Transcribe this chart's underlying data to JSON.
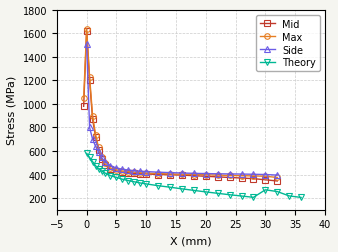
{
  "title": "",
  "xlabel": "X (mm)",
  "ylabel": "Stress (MPa)",
  "xlim": [
    -5,
    40
  ],
  "ylim": [
    100,
    1800
  ],
  "xticks": [
    -5,
    0,
    5,
    10,
    15,
    20,
    25,
    30,
    35,
    40
  ],
  "yticks": [
    200,
    400,
    600,
    800,
    1000,
    1200,
    1400,
    1600,
    1800
  ],
  "series": {
    "Mid": {
      "color": "#c0392b",
      "marker": "s",
      "markersize": 4,
      "linewidth": 1.0,
      "x": [
        -0.5,
        0.0,
        0.5,
        1.0,
        1.5,
        2.0,
        2.5,
        3.0,
        4.0,
        5.0,
        6.0,
        7.0,
        8.0,
        9.0,
        10.0,
        12.0,
        14.0,
        16.0,
        18.0,
        20.0,
        22.0,
        24.0,
        26.0,
        28.0,
        30.0,
        32.0
      ],
      "y": [
        980,
        1620,
        1200,
        870,
        720,
        610,
        530,
        485,
        445,
        430,
        420,
        415,
        410,
        408,
        405,
        400,
        398,
        395,
        390,
        385,
        380,
        375,
        370,
        365,
        355,
        345
      ]
    },
    "Max": {
      "color": "#e67e22",
      "marker": "o",
      "markersize": 4,
      "linewidth": 1.0,
      "x": [
        -0.5,
        0.0,
        0.5,
        1.0,
        1.5,
        2.0,
        2.5,
        3.0,
        4.0,
        5.0,
        6.0,
        7.0,
        8.0,
        9.0,
        10.0,
        12.0,
        14.0,
        16.0,
        18.0,
        20.0,
        22.0,
        24.0,
        26.0,
        28.0,
        30.0,
        32.0
      ],
      "y": [
        1050,
        1640,
        1230,
        900,
        740,
        630,
        545,
        495,
        455,
        440,
        430,
        425,
        420,
        415,
        412,
        408,
        405,
        402,
        400,
        398,
        395,
        392,
        390,
        388,
        385,
        375
      ]
    },
    "Side": {
      "color": "#6c5ce7",
      "marker": "^",
      "markersize": 4,
      "linewidth": 1.0,
      "x": [
        0.0,
        0.5,
        1.0,
        1.5,
        2.0,
        2.5,
        3.0,
        4.0,
        5.0,
        6.0,
        7.0,
        8.0,
        9.0,
        10.0,
        12.0,
        14.0,
        16.0,
        18.0,
        20.0,
        22.0,
        24.0,
        26.0,
        28.0,
        30.0,
        32.0
      ],
      "y": [
        1510,
        800,
        700,
        640,
        590,
        545,
        510,
        475,
        455,
        445,
        438,
        432,
        428,
        425,
        420,
        416,
        413,
        410,
        408,
        406,
        405,
        404,
        402,
        400,
        395
      ]
    },
    "Theory": {
      "color": "#00b894",
      "marker": "v",
      "markersize": 4,
      "linewidth": 1.0,
      "x": [
        0.0,
        0.5,
        1.0,
        1.5,
        2.0,
        2.5,
        3.0,
        4.0,
        5.0,
        6.0,
        7.0,
        8.0,
        9.0,
        10.0,
        12.0,
        14.0,
        16.0,
        18.0,
        20.0,
        22.0,
        24.0,
        26.0,
        28.0,
        30.0,
        32.0,
        34.0,
        36.0
      ],
      "y": [
        580,
        545,
        510,
        475,
        450,
        430,
        415,
        390,
        375,
        360,
        348,
        338,
        328,
        320,
        305,
        292,
        278,
        265,
        252,
        240,
        228,
        217,
        206,
        270,
        255,
        218,
        205
      ]
    }
  },
  "legend_loc": "upper right",
  "grid_color": "#cccccc",
  "grid_linestyle": "--",
  "bg_color": "#f5f5f0",
  "axis_bg_color": "#ffffff"
}
